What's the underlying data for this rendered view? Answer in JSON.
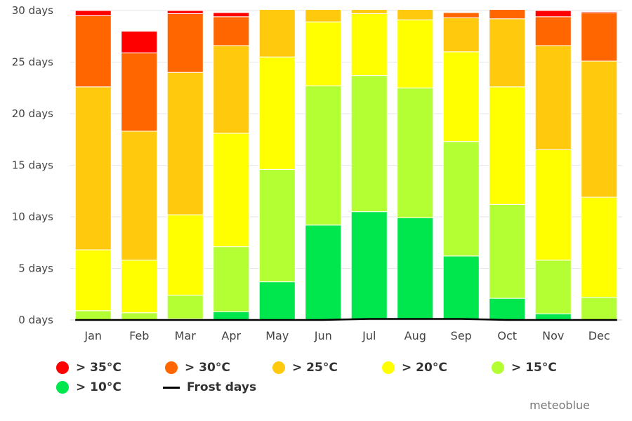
{
  "chart_data": {
    "type": "bar",
    "stacked": true,
    "categories": [
      "Jan",
      "Feb",
      "Mar",
      "Apr",
      "May",
      "Jun",
      "Jul",
      "Aug",
      "Sep",
      "Oct",
      "Nov",
      "Dec"
    ],
    "y_unit": "days",
    "ylim": [
      0,
      30
    ],
    "yticks": [
      0,
      5,
      10,
      15,
      20,
      25,
      30
    ],
    "ytick_labels": [
      "0 days",
      "5 days",
      "10 days",
      "15 days",
      "20 days",
      "25 days",
      "30 days"
    ],
    "grid": true,
    "legend_position": "bottom",
    "series": [
      {
        "name": "> 10°C",
        "color": "#00e64d",
        "values": [
          0.0,
          0.0,
          0.1,
          0.8,
          3.7,
          9.2,
          10.5,
          9.9,
          6.2,
          2.1,
          0.6,
          0.0
        ]
      },
      {
        "name": "> 15°C",
        "color": "#b3ff33",
        "values": [
          0.9,
          0.7,
          2.3,
          6.3,
          10.9,
          13.5,
          13.2,
          12.6,
          11.1,
          9.1,
          5.2,
          2.2
        ]
      },
      {
        "name": "> 20°C",
        "color": "#ffff00",
        "values": [
          5.9,
          5.1,
          7.8,
          11.0,
          10.9,
          6.2,
          6.0,
          6.6,
          8.7,
          11.4,
          10.7,
          9.7
        ]
      },
      {
        "name": "> 25°C",
        "color": "#ffc90e",
        "values": [
          15.8,
          12.5,
          13.8,
          8.5,
          4.6,
          1.2,
          0.4,
          1.0,
          3.3,
          6.6,
          10.1,
          13.2
        ]
      },
      {
        "name": "> 30°C",
        "color": "#ff6600",
        "values": [
          6.9,
          7.6,
          5.7,
          2.8,
          0.0,
          0.0,
          0.0,
          0.0,
          0.5,
          0.9,
          2.8,
          4.7
        ]
      },
      {
        "name": "> 35°C",
        "color": "#ff0000",
        "values": [
          0.5,
          2.1,
          0.3,
          0.4,
          0.0,
          0.0,
          0.0,
          0.0,
          0.0,
          0.0,
          0.6,
          0.1
        ]
      }
    ],
    "line_series": [
      {
        "name": "Frost days",
        "color": "#000000",
        "values": [
          0.0,
          0.0,
          0.0,
          0.0,
          0.0,
          0.0,
          0.1,
          0.1,
          0.1,
          0.0,
          0.0,
          0.0
        ]
      }
    ],
    "legend_order": [
      "> 35°C",
      "> 30°C",
      "> 25°C",
      "> 20°C",
      "> 15°C",
      "> 10°C",
      "Frost days"
    ]
  },
  "credit": "meteoblue"
}
